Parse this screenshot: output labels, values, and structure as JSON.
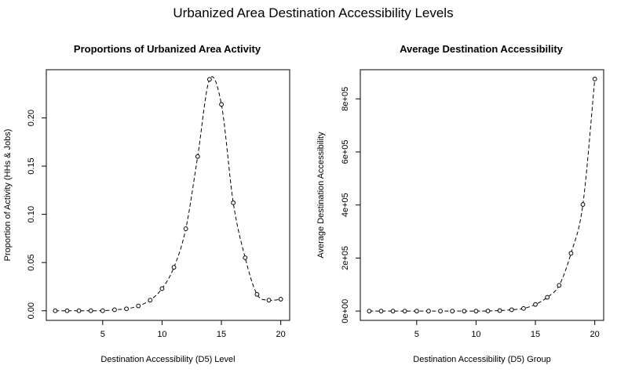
{
  "figure": {
    "title": "Urbanized Area Destination Accessibility Levels"
  },
  "chart_data": [
    {
      "type": "line",
      "title": "Proportions of Urbanized Area Activity",
      "xlabel": "Destination Accessibility (D5) Level",
      "ylabel": "Proportion of Activity (HHs & Jobs)",
      "x": [
        1,
        2,
        3,
        4,
        5,
        6,
        7,
        8,
        9,
        10,
        11,
        12,
        13,
        14,
        15,
        16,
        17,
        18,
        19,
        20
      ],
      "y": [
        0.0,
        0.0,
        0.0,
        0.0,
        0.0,
        0.001,
        0.002,
        0.005,
        0.011,
        0.023,
        0.045,
        0.085,
        0.16,
        0.24,
        0.214,
        0.112,
        0.055,
        0.017,
        0.011,
        0.012
      ],
      "xlim": [
        0.25,
        20.75
      ],
      "ylim": [
        -0.01,
        0.25
      ],
      "xticks": [
        5,
        10,
        15,
        20
      ],
      "xtick_labels": [
        "5",
        "10",
        "15",
        "20"
      ],
      "yticks": [
        0,
        0.05,
        0.1,
        0.15,
        0.2
      ],
      "ytick_labels": [
        "0.00",
        "0.05",
        "0.10",
        "0.15",
        "0.20"
      ],
      "line_style": "dashed",
      "marker": "open-circle",
      "grid": false
    },
    {
      "type": "line",
      "title": "Average Destination Accessibility",
      "xlabel": "Destination Accessibility (D5) Group",
      "ylabel": "Average Destination Accessibility",
      "x": [
        1,
        2,
        3,
        4,
        5,
        6,
        7,
        8,
        9,
        10,
        11,
        12,
        13,
        14,
        15,
        16,
        17,
        18,
        19,
        20
      ],
      "y": [
        0,
        0,
        0,
        0,
        0,
        0,
        0,
        0,
        0,
        0,
        500,
        2000,
        5000,
        10000,
        25000,
        52000,
        97000,
        218000,
        402000,
        875000
      ],
      "xlim": [
        0.25,
        20.75
      ],
      "ylim": [
        -35000,
        910000
      ],
      "xticks": [
        5,
        10,
        15,
        20
      ],
      "xtick_labels": [
        "5",
        "10",
        "15",
        "20"
      ],
      "yticks": [
        0,
        200000,
        400000,
        600000,
        800000
      ],
      "ytick_labels": [
        "0e+00",
        "2e+05",
        "4e+05",
        "6e+05",
        "8e+05"
      ],
      "line_style": "dashed",
      "marker": "open-circle",
      "grid": false
    }
  ]
}
